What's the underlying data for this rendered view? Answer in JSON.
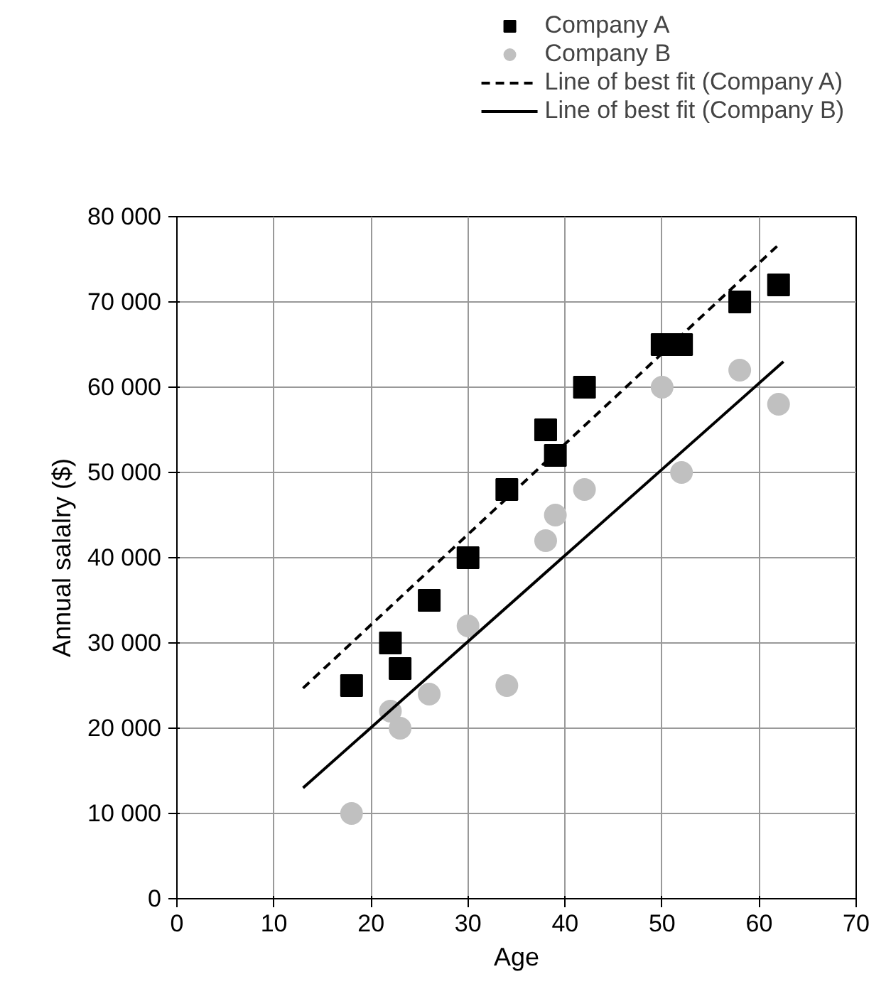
{
  "chart_data": {
    "type": "scatter",
    "xlabel": "Age",
    "ylabel": "Annual salalry ($)",
    "xlim": [
      0,
      70
    ],
    "xticks": [
      0,
      10,
      20,
      30,
      40,
      50,
      60,
      70
    ],
    "ylim": [
      0,
      80000
    ],
    "yticks": [
      0,
      {
        "value": 10000,
        "label": "10 000"
      },
      {
        "value": 20000,
        "label": "20 000"
      },
      {
        "value": 30000,
        "label": "30 000"
      },
      {
        "value": 40000,
        "label": "40 000"
      },
      {
        "value": 50000,
        "label": "50 000"
      },
      {
        "value": 60000,
        "label": "60 000"
      },
      {
        "value": 70000,
        "label": "70 000"
      },
      {
        "value": 80000,
        "label": "80 000"
      }
    ],
    "grid": true,
    "legend": "top right",
    "series": [
      {
        "name": "Company A",
        "color": "#000000",
        "marker": "square",
        "x": [
          18,
          22,
          23,
          26,
          30,
          34,
          38,
          39,
          42,
          50,
          52,
          58,
          62
        ],
        "values": [
          25000,
          30000,
          27000,
          35000,
          40000,
          48000,
          55000,
          52000,
          60000,
          65000,
          65000,
          70000,
          72000
        ]
      },
      {
        "name": "Company B",
        "color": "#c0c0c0",
        "marker": "circle",
        "x": [
          18,
          22,
          23,
          26,
          30,
          34,
          38,
          39,
          42,
          50,
          52,
          58,
          62
        ],
        "values": [
          10000,
          22000,
          20000,
          24000,
          32000,
          25000,
          42000,
          45000,
          48000,
          60000,
          50000,
          62000,
          58000
        ]
      },
      {
        "name": "Line of best fit (Company A)",
        "type": "line",
        "color": "#000000",
        "line_style": "dashed",
        "marker": "none",
        "x": [
          13,
          62
        ],
        "values": [
          24700,
          76700
        ]
      },
      {
        "name": "Line of best fit (Company B)",
        "type": "line",
        "color": "#000000",
        "line_style": "solid",
        "marker": "none",
        "x": [
          13,
          62.5
        ],
        "values": [
          13000,
          63000
        ]
      }
    ]
  }
}
